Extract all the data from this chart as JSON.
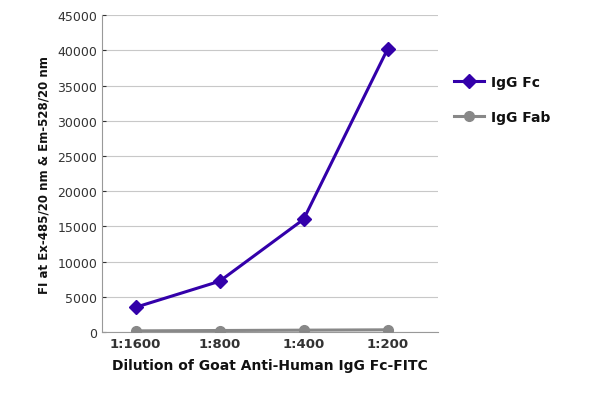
{
  "x_labels": [
    "1:1600",
    "1:800",
    "1:400",
    "1:200"
  ],
  "igg_fc": [
    3500,
    7200,
    16000,
    40200
  ],
  "igg_fab": [
    150,
    200,
    250,
    300
  ],
  "igg_fc_color": "#3300AA",
  "igg_fab_color": "#888888",
  "xlabel": "Dilution of Goat Anti-Human IgG Fc-FITC",
  "ylabel": "FI at Ex-485/20 nm & Em-528/20 nm",
  "ylim": [
    0,
    45000
  ],
  "yticks": [
    0,
    5000,
    10000,
    15000,
    20000,
    25000,
    30000,
    35000,
    40000,
    45000
  ],
  "background_color": "#ffffff",
  "grid_color": "#c8c8c8",
  "legend_labels": [
    "IgG Fc",
    "IgG Fab"
  ],
  "line_width": 2.2,
  "marker_size_fc": 7,
  "marker_size_fab": 7
}
